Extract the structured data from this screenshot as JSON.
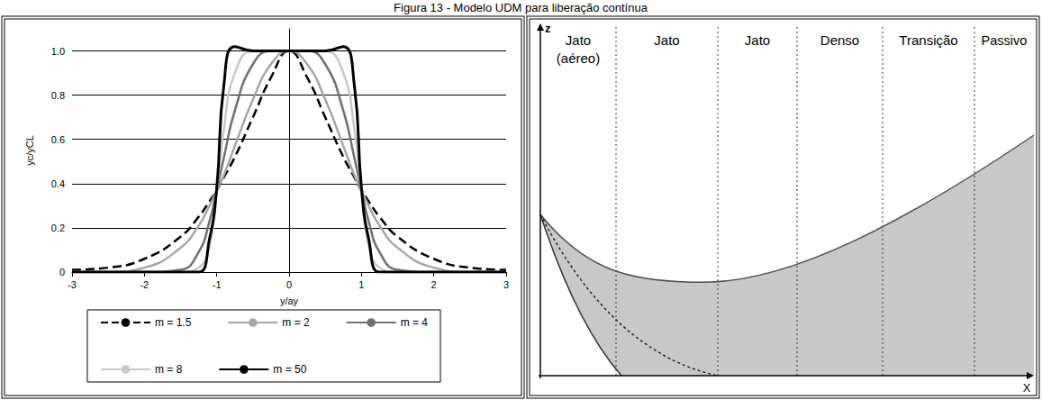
{
  "caption": "Figura 13 - Modelo UDM para liberação contínua",
  "chart_data": {
    "type": "line",
    "x_label": "y/ay",
    "y_label": "yc/yCL",
    "x": [
      -3,
      -2.5,
      -2,
      -1.5,
      -1.25,
      -1.1,
      -1,
      -0.9,
      -0.75,
      -0.5,
      -0.25,
      0,
      0.25,
      0.5,
      0.75,
      0.9,
      1,
      1.1,
      1.25,
      1.5,
      2,
      2.5,
      3
    ],
    "series": [
      {
        "name": "m = 1.5",
        "color": "#000000",
        "line_style": "dashed",
        "values": [
          0.01,
          0.02,
          0.06,
          0.16,
          0.25,
          0.32,
          0.37,
          0.43,
          0.52,
          0.7,
          0.88,
          1,
          0.88,
          0.7,
          0.52,
          0.43,
          0.37,
          0.32,
          0.25,
          0.16,
          0.06,
          0.02,
          0.01
        ]
      },
      {
        "name": "m = 2",
        "color": "#a6a6a6",
        "line_style": "solid",
        "values": [
          0,
          0,
          0.02,
          0.11,
          0.21,
          0.3,
          0.37,
          0.44,
          0.57,
          0.78,
          0.94,
          1,
          0.94,
          0.78,
          0.57,
          0.44,
          0.37,
          0.3,
          0.21,
          0.11,
          0.02,
          0,
          0
        ]
      },
      {
        "name": "m = 4",
        "color": "#707070",
        "line_style": "solid",
        "values": [
          0,
          0,
          0,
          0.01,
          0.09,
          0.23,
          0.37,
          0.52,
          0.73,
          0.94,
          1,
          1,
          1,
          0.94,
          0.73,
          0.52,
          0.37,
          0.23,
          0.09,
          0.01,
          0,
          0,
          0
        ]
      },
      {
        "name": "m = 8",
        "color": "#c8c8c8",
        "line_style": "solid",
        "values": [
          0,
          0,
          0,
          0,
          0.02,
          0.12,
          0.37,
          0.65,
          0.9,
          1,
          1,
          1,
          1,
          1,
          0.9,
          0.65,
          0.37,
          0.12,
          0.02,
          0,
          0,
          0,
          0
        ]
      },
      {
        "name": "m = 50",
        "color": "#000000",
        "line_style": "solid",
        "values": [
          0,
          0,
          0,
          0,
          0,
          0.15,
          0.38,
          0.85,
          1.02,
          1,
          1,
          1,
          1,
          1,
          1.02,
          0.85,
          0.38,
          0.15,
          0,
          0,
          0,
          0,
          0
        ]
      }
    ],
    "xlim": [
      -3,
      3
    ],
    "xticks": [
      -3,
      -2,
      -1,
      0,
      1,
      2,
      3
    ],
    "ylim": [
      0,
      1.1
    ],
    "yticks": [
      0,
      0.2,
      0.4,
      0.6,
      0.8,
      {
        "value": 1,
        "label": "1.0"
      }
    ],
    "grid": true,
    "legend": "bottom"
  },
  "diagram": {
    "axes": {
      "vertical": "z",
      "horizontal": "X"
    },
    "regions": [
      "Jato (aéreo)",
      "Jato",
      "Jato",
      "Denso",
      "Transição",
      "Passivo"
    ]
  }
}
